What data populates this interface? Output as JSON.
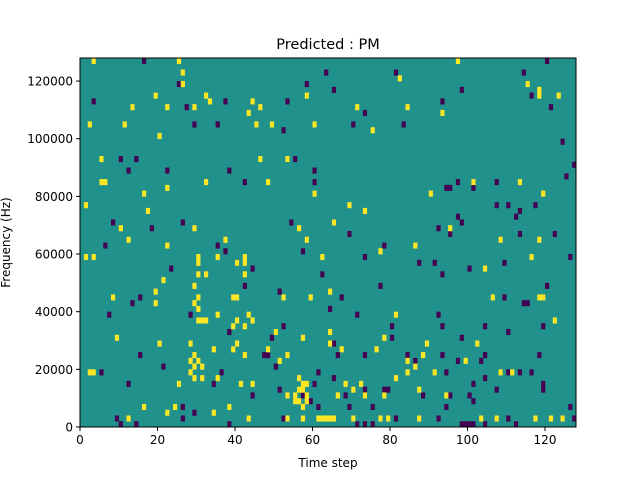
{
  "chart_data": {
    "type": "heatmap",
    "title": "Predicted : PM",
    "xlabel": "Time step",
    "ylabel": "Frequency (Hz)",
    "xlim": [
      0,
      128
    ],
    "ylim": [
      0,
      128000
    ],
    "xticks": [
      0,
      20,
      40,
      60,
      80,
      100,
      120
    ],
    "yticks": [
      0,
      20000,
      40000,
      60000,
      80000,
      100000,
      120000
    ],
    "ytick_labels": [
      "0",
      "20000",
      "40000",
      "60000",
      "80000",
      "100000",
      "120000"
    ],
    "grid": false,
    "legend": "none",
    "colormap": "viridis",
    "background_value": 0,
    "colors": {
      "background": "#21918c",
      "high": "#fde725",
      "low": "#440154"
    },
    "cell_size": {
      "time_steps": 1,
      "frequency_hz": 2000
    },
    "high_cells": [
      [
        3,
        126000
      ],
      [
        25,
        126000
      ],
      [
        97,
        126000
      ],
      [
        26,
        122000
      ],
      [
        82,
        120000
      ],
      [
        26,
        118000
      ],
      [
        115,
        118000
      ],
      [
        118,
        116000
      ],
      [
        118,
        114000
      ],
      [
        19,
        114000
      ],
      [
        58,
        114000
      ],
      [
        32,
        114000
      ],
      [
        123,
        114000
      ],
      [
        33,
        112000
      ],
      [
        44,
        112000
      ],
      [
        84,
        110000
      ],
      [
        46,
        110000
      ],
      [
        71,
        110000
      ],
      [
        43,
        108000
      ],
      [
        22,
        110000
      ],
      [
        13,
        110000
      ],
      [
        29,
        110000
      ],
      [
        93,
        108000
      ],
      [
        2,
        104000
      ],
      [
        11,
        104000
      ],
      [
        45,
        104000
      ],
      [
        49,
        104000
      ],
      [
        60,
        104000
      ],
      [
        75,
        102000
      ],
      [
        20,
        100000
      ],
      [
        5,
        92000
      ],
      [
        46,
        92000
      ],
      [
        53,
        92000
      ],
      [
        5,
        84000
      ],
      [
        6,
        84000
      ],
      [
        22,
        82000
      ],
      [
        32,
        84000
      ],
      [
        48,
        84000
      ],
      [
        101,
        84000
      ],
      [
        113,
        84000
      ],
      [
        16,
        80000
      ],
      [
        60,
        80000
      ],
      [
        90,
        80000
      ],
      [
        119,
        80000
      ],
      [
        69,
        76000
      ],
      [
        1,
        76000
      ],
      [
        17,
        74000
      ],
      [
        73,
        74000
      ],
      [
        10,
        68000
      ],
      [
        56,
        68000
      ],
      [
        65,
        70000
      ],
      [
        29,
        68000
      ],
      [
        95,
        68000
      ],
      [
        12,
        64000
      ],
      [
        37,
        64000
      ],
      [
        58,
        64000
      ],
      [
        108,
        64000
      ],
      [
        118,
        64000
      ],
      [
        22,
        62000
      ],
      [
        77,
        60000
      ],
      [
        86,
        62000
      ],
      [
        1,
        58000
      ],
      [
        3,
        58000
      ],
      [
        30,
        58000
      ],
      [
        35,
        58000
      ],
      [
        42,
        58000
      ],
      [
        62,
        58000
      ],
      [
        116,
        58000
      ],
      [
        30,
        56000
      ],
      [
        42,
        56000
      ],
      [
        40,
        56000
      ],
      [
        104,
        54000
      ],
      [
        30,
        52000
      ],
      [
        32,
        52000
      ],
      [
        42,
        52000
      ],
      [
        21,
        50000
      ],
      [
        29,
        48000
      ],
      [
        8,
        44000
      ],
      [
        19,
        46000
      ],
      [
        30,
        44000
      ],
      [
        39,
        44000
      ],
      [
        40,
        44000
      ],
      [
        52,
        44000
      ],
      [
        59,
        44000
      ],
      [
        64,
        46000
      ],
      [
        106,
        44000
      ],
      [
        118,
        44000
      ],
      [
        119,
        44000
      ],
      [
        19,
        42000
      ],
      [
        29,
        42000
      ],
      [
        30,
        40000
      ],
      [
        35,
        38000
      ],
      [
        43,
        38000
      ],
      [
        30,
        36000
      ],
      [
        31,
        36000
      ],
      [
        32,
        36000
      ],
      [
        40,
        36000
      ],
      [
        44,
        36000
      ],
      [
        81,
        38000
      ],
      [
        122,
        36000
      ],
      [
        39,
        34000
      ],
      [
        42,
        34000
      ],
      [
        50,
        32000
      ],
      [
        57,
        30000
      ],
      [
        64,
        32000
      ],
      [
        9,
        30000
      ],
      [
        64,
        28000
      ],
      [
        78,
        30000
      ],
      [
        89,
        28000
      ],
      [
        102,
        28000
      ],
      [
        20,
        28000
      ],
      [
        28,
        28000
      ],
      [
        40,
        28000
      ],
      [
        34,
        26000
      ],
      [
        39,
        26000
      ],
      [
        48,
        26000
      ],
      [
        29,
        24000
      ],
      [
        30,
        22000
      ],
      [
        42,
        24000
      ],
      [
        51,
        22000
      ],
      [
        53,
        24000
      ],
      [
        67,
        26000
      ],
      [
        76,
        26000
      ],
      [
        99,
        22000
      ],
      [
        28,
        22000
      ],
      [
        29,
        20000
      ],
      [
        31,
        20000
      ],
      [
        84,
        22000
      ],
      [
        86,
        20000
      ],
      [
        88,
        24000
      ],
      [
        2,
        18000
      ],
      [
        3,
        18000
      ],
      [
        28,
        18000
      ],
      [
        29,
        16000
      ],
      [
        81,
        16000
      ],
      [
        84,
        18000
      ],
      [
        91,
        18000
      ],
      [
        108,
        18000
      ],
      [
        111,
        18000
      ],
      [
        25,
        14000
      ],
      [
        31,
        16000
      ],
      [
        35,
        16000
      ],
      [
        41,
        14000
      ],
      [
        44,
        14000
      ],
      [
        56,
        16000
      ],
      [
        57,
        14000
      ],
      [
        58,
        14000
      ],
      [
        68,
        14000
      ],
      [
        72,
        14000
      ],
      [
        53,
        10000
      ],
      [
        55,
        10000
      ],
      [
        56,
        12000
      ],
      [
        57,
        12000
      ],
      [
        58,
        10000
      ],
      [
        66,
        10000
      ],
      [
        70,
        12000
      ],
      [
        78,
        10000
      ],
      [
        87,
        12000
      ],
      [
        94,
        10000
      ],
      [
        55,
        8000
      ],
      [
        56,
        8000
      ],
      [
        57,
        6000
      ],
      [
        58,
        8000
      ],
      [
        73,
        10000
      ],
      [
        24,
        6000
      ],
      [
        38,
        6000
      ],
      [
        16,
        6000
      ],
      [
        22,
        4000
      ],
      [
        34,
        4000
      ],
      [
        12,
        2000
      ],
      [
        43,
        2000
      ],
      [
        53,
        2000
      ],
      [
        57,
        2000
      ],
      [
        61,
        2000
      ],
      [
        62,
        2000
      ],
      [
        63,
        2000
      ],
      [
        64,
        2000
      ],
      [
        65,
        2000
      ],
      [
        70,
        2000
      ],
      [
        77,
        2000
      ],
      [
        79,
        2000
      ],
      [
        87,
        2000
      ],
      [
        103,
        2000
      ],
      [
        107,
        2000
      ],
      [
        117,
        2000
      ],
      [
        121,
        2000
      ],
      [
        124,
        2000
      ]
    ],
    "low_cells": [
      [
        16,
        126000
      ],
      [
        120,
        126000
      ],
      [
        63,
        122000
      ],
      [
        81,
        122000
      ],
      [
        25,
        118000
      ],
      [
        114,
        122000
      ],
      [
        3,
        112000
      ],
      [
        58,
        118000
      ],
      [
        65,
        116000
      ],
      [
        98,
        116000
      ],
      [
        116,
        114000
      ],
      [
        37,
        112000
      ],
      [
        53,
        112000
      ],
      [
        93,
        112000
      ],
      [
        121,
        110000
      ],
      [
        27,
        110000
      ],
      [
        73,
        108000
      ],
      [
        29,
        104000
      ],
      [
        70,
        104000
      ],
      [
        83,
        104000
      ],
      [
        35,
        104000
      ],
      [
        52,
        102000
      ],
      [
        124,
        98000
      ],
      [
        10,
        92000
      ],
      [
        14,
        92000
      ],
      [
        55,
        92000
      ],
      [
        127,
        90000
      ],
      [
        12,
        88000
      ],
      [
        22,
        88000
      ],
      [
        38,
        88000
      ],
      [
        60,
        88000
      ],
      [
        94,
        82000
      ],
      [
        95,
        82000
      ],
      [
        97,
        84000
      ],
      [
        101,
        82000
      ],
      [
        107,
        84000
      ],
      [
        60,
        84000
      ],
      [
        42,
        84000
      ],
      [
        125,
        86000
      ],
      [
        117,
        76000
      ],
      [
        8,
        70000
      ],
      [
        26,
        70000
      ],
      [
        54,
        70000
      ],
      [
        65,
        70000
      ],
      [
        107,
        76000
      ],
      [
        110,
        76000
      ],
      [
        113,
        74000
      ],
      [
        97,
        72000
      ],
      [
        35,
        62000
      ],
      [
        37,
        60000
      ],
      [
        18,
        68000
      ],
      [
        69,
        66000
      ],
      [
        78,
        62000
      ],
      [
        92,
        68000
      ],
      [
        95,
        66000
      ],
      [
        98,
        70000
      ],
      [
        112,
        72000
      ],
      [
        113,
        66000
      ],
      [
        122,
        66000
      ],
      [
        6,
        62000
      ],
      [
        40,
        56000
      ],
      [
        57,
        60000
      ],
      [
        73,
        58000
      ],
      [
        87,
        56000
      ],
      [
        91,
        56000
      ],
      [
        100,
        54000
      ],
      [
        109,
        56000
      ],
      [
        126,
        58000
      ],
      [
        23,
        54000
      ],
      [
        44,
        54000
      ],
      [
        62,
        52000
      ],
      [
        93,
        52000
      ],
      [
        42,
        48000
      ],
      [
        77,
        48000
      ],
      [
        120,
        48000
      ],
      [
        13,
        42000
      ],
      [
        15,
        44000
      ],
      [
        51,
        46000
      ],
      [
        67,
        44000
      ],
      [
        39,
        44000
      ],
      [
        109,
        44000
      ],
      [
        114,
        42000
      ],
      [
        115,
        42000
      ],
      [
        7,
        38000
      ],
      [
        28,
        38000
      ],
      [
        64,
        40000
      ],
      [
        71,
        38000
      ],
      [
        92,
        38000
      ],
      [
        38,
        32000
      ],
      [
        52,
        34000
      ],
      [
        80,
        34000
      ],
      [
        93,
        34000
      ],
      [
        104,
        34000
      ],
      [
        119,
        34000
      ],
      [
        49,
        30000
      ],
      [
        65,
        28000
      ],
      [
        80,
        30000
      ],
      [
        98,
        30000
      ],
      [
        110,
        32000
      ],
      [
        15,
        24000
      ],
      [
        47,
        24000
      ],
      [
        48,
        24000
      ],
      [
        66,
        24000
      ],
      [
        73,
        24000
      ],
      [
        84,
        24000
      ],
      [
        93,
        24000
      ],
      [
        97,
        22000
      ],
      [
        118,
        24000
      ],
      [
        21,
        20000
      ],
      [
        50,
        20000
      ],
      [
        103,
        22000
      ],
      [
        104,
        24000
      ],
      [
        5,
        18000
      ],
      [
        12,
        14000
      ],
      [
        36,
        18000
      ],
      [
        61,
        18000
      ],
      [
        65,
        16000
      ],
      [
        86,
        22000
      ],
      [
        94,
        18000
      ],
      [
        116,
        18000
      ],
      [
        110,
        18000
      ],
      [
        101,
        14000
      ],
      [
        113,
        18000
      ],
      [
        119,
        14000
      ],
      [
        51,
        12000
      ],
      [
        78,
        12000
      ],
      [
        79,
        12000
      ],
      [
        34,
        14000
      ],
      [
        60,
        14000
      ],
      [
        104,
        16000
      ],
      [
        107,
        12000
      ],
      [
        57,
        10000
      ],
      [
        68,
        10000
      ],
      [
        73,
        12000
      ],
      [
        100,
        10000
      ],
      [
        44,
        10000
      ],
      [
        88,
        10000
      ],
      [
        95,
        10000
      ],
      [
        59,
        8000
      ],
      [
        61,
        6000
      ],
      [
        69,
        6000
      ],
      [
        75,
        6000
      ],
      [
        101,
        8000
      ],
      [
        119,
        12000
      ],
      [
        26,
        6000
      ],
      [
        29,
        4000
      ],
      [
        94,
        6000
      ],
      [
        126,
        6000
      ],
      [
        9,
        2000
      ],
      [
        10,
        0
      ],
      [
        14,
        0
      ],
      [
        26,
        2000
      ],
      [
        38,
        0
      ],
      [
        52,
        2000
      ],
      [
        71,
        0
      ],
      [
        73,
        0
      ],
      [
        75,
        0
      ],
      [
        81,
        2000
      ],
      [
        92,
        2000
      ],
      [
        98,
        0
      ],
      [
        99,
        0
      ],
      [
        100,
        0
      ],
      [
        101,
        0
      ],
      [
        104,
        0
      ],
      [
        110,
        2000
      ],
      [
        112,
        0
      ],
      [
        127,
        2000
      ]
    ]
  }
}
